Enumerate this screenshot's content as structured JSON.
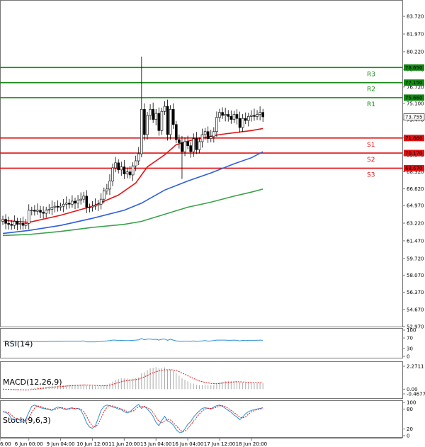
{
  "chart_data": {
    "type": "candlestick",
    "price_ylim": [
      52.97,
      85.2
    ],
    "price_ticks": [
      "83.720",
      "81.970",
      "80.220",
      "78.470",
      "76.720",
      "75.100",
      "73.470",
      "71.720",
      "69.970",
      "68.320",
      "66.620",
      "64.970",
      "63.220",
      "61.470",
      "59.720",
      "58.070",
      "56.370",
      "54.670",
      "52.970"
    ],
    "x_ticks": [
      "6:00",
      "6 Jun 00:00",
      "9 Jun 04:00",
      "10 Jun 12:00",
      "11 Jun 20:00",
      "13 Jun 04:00",
      "16 Jun 04:00",
      "17 Jun 12:00",
      "18 Jun 20:00"
    ],
    "x_tick_index": [
      0,
      9,
      20,
      31,
      42,
      53,
      64,
      75,
      86
    ],
    "levels": [
      {
        "name": "R3",
        "value": 78.65,
        "label": "78.650",
        "color": "#138a13"
      },
      {
        "name": "R2",
        "value": 77.15,
        "label": "77.150",
        "color": "#138a13"
      },
      {
        "name": "R1",
        "value": 75.66,
        "label": "75.660",
        "color": "#138a13"
      },
      {
        "name": "S1",
        "value": 71.66,
        "label": "71.660",
        "color": "#e01414"
      },
      {
        "name": "S2",
        "value": 70.17,
        "label": "70.170",
        "color": "#e01414"
      },
      {
        "name": "S3",
        "value": 68.67,
        "label": "68.670",
        "color": "#e01414"
      }
    ],
    "current_price": {
      "value": 73.755,
      "label": "73.755"
    },
    "candles_close": [
      63.6,
      63.2,
      63.1,
      63.0,
      63.4,
      63.1,
      63.2,
      63.0,
      63.2,
      64.5,
      64.5,
      64.4,
      64.5,
      64.3,
      64.2,
      64.5,
      64.6,
      64.8,
      64.9,
      64.8,
      64.9,
      65.1,
      65.2,
      65.1,
      65.4,
      65.2,
      65.5,
      65.6,
      65.9,
      64.8,
      64.8,
      64.9,
      65.0,
      65.1,
      65.6,
      66.4,
      66.6,
      67.4,
      68.7,
      69.2,
      68.5,
      68.8,
      68.1,
      68.3,
      68.0,
      68.9,
      69.4,
      70.1,
      74.5,
      72.0,
      73.9,
      74.5,
      73.5,
      74.1,
      72.4,
      74.3,
      74.8,
      72.0,
      74.5,
      73.0,
      71.5,
      71.2,
      70.3,
      71.3,
      70.9,
      70.3,
      71.6,
      70.5,
      71.3,
      72.0,
      72.3,
      71.6,
      71.8,
      72.3,
      73.7,
      74.2,
      73.9,
      74.0,
      73.8,
      73.5,
      74.0,
      73.6,
      72.7,
      73.6,
      73.4,
      73.8,
      73.9,
      73.8,
      74.0,
      74.2,
      73.76
    ],
    "ma_fast_red": [
      [
        0,
        63.5
      ],
      [
        9,
        63.3
      ],
      [
        20,
        64.0
      ],
      [
        31,
        64.9
      ],
      [
        40,
        66.0
      ],
      [
        46,
        67.2
      ],
      [
        50,
        68.8
      ],
      [
        56,
        70.0
      ],
      [
        60,
        71.0
      ],
      [
        66,
        71.5
      ],
      [
        75,
        72.0
      ],
      [
        86,
        72.4
      ],
      [
        90,
        72.6
      ]
    ],
    "ma_mid_blue": [
      [
        0,
        62.2
      ],
      [
        9,
        62.5
      ],
      [
        20,
        63.0
      ],
      [
        31,
        63.7
      ],
      [
        42,
        64.5
      ],
      [
        48,
        65.2
      ],
      [
        56,
        66.5
      ],
      [
        64,
        67.4
      ],
      [
        72,
        68.2
      ],
      [
        80,
        69.1
      ],
      [
        86,
        69.7
      ],
      [
        90,
        70.3
      ]
    ],
    "ma_slow_green": [
      [
        0,
        62.0
      ],
      [
        9,
        62.1
      ],
      [
        20,
        62.4
      ],
      [
        31,
        62.8
      ],
      [
        42,
        63.1
      ],
      [
        48,
        63.4
      ],
      [
        56,
        64.1
      ],
      [
        64,
        64.8
      ],
      [
        72,
        65.3
      ],
      [
        80,
        65.9
      ],
      [
        86,
        66.3
      ],
      [
        90,
        66.6
      ]
    ],
    "rsi": {
      "label": "RSI(14)",
      "ticks": [
        "100",
        "70",
        "30",
        "0"
      ],
      "values": [
        56,
        56,
        55,
        55,
        55,
        56,
        56,
        55,
        55,
        57,
        57,
        56,
        56,
        56,
        56,
        56,
        57,
        57,
        57,
        57,
        57,
        58,
        58,
        58,
        58,
        58,
        58,
        58,
        59,
        55,
        55,
        55,
        55,
        56,
        57,
        58,
        59,
        60,
        62,
        62,
        60,
        61,
        60,
        60,
        60,
        61,
        62,
        63,
        68,
        63,
        66,
        66,
        64,
        65,
        62,
        65,
        66,
        61,
        65,
        62,
        59,
        58,
        57,
        58,
        58,
        57,
        59,
        57,
        58,
        59,
        60,
        58,
        59,
        60,
        62,
        62,
        62,
        62,
        61,
        61,
        62,
        61,
        59,
        61,
        60,
        61,
        61,
        61,
        61,
        62,
        61
      ]
    },
    "macd": {
      "label": "MACD(12,26,9)",
      "ticks": [
        "2.2711",
        "0.00",
        "-0.4677"
      ]
    },
    "stoch": {
      "label": "Stoch(9,6,3)",
      "ticks": [
        "100",
        "80",
        "20",
        "0"
      ],
      "k": [
        72,
        70,
        64,
        52,
        46,
        52,
        46,
        40,
        50,
        70,
        88,
        92,
        88,
        84,
        82,
        80,
        78,
        76,
        82,
        86,
        84,
        80,
        78,
        82,
        84,
        80,
        82,
        76,
        60,
        38,
        26,
        22,
        30,
        52,
        76,
        88,
        92,
        90,
        86,
        84,
        80,
        78,
        72,
        68,
        72,
        80,
        88,
        94,
        82,
        88,
        80,
        70,
        58,
        40,
        30,
        46,
        58,
        44,
        40,
        32,
        18,
        10,
        10,
        20,
        34,
        42,
        56,
        66,
        74,
        82,
        84,
        82,
        80,
        86,
        90,
        92,
        88,
        82,
        76,
        70,
        62,
        56,
        48,
        56,
        66,
        72,
        76,
        78,
        80,
        82,
        84
      ]
    }
  }
}
